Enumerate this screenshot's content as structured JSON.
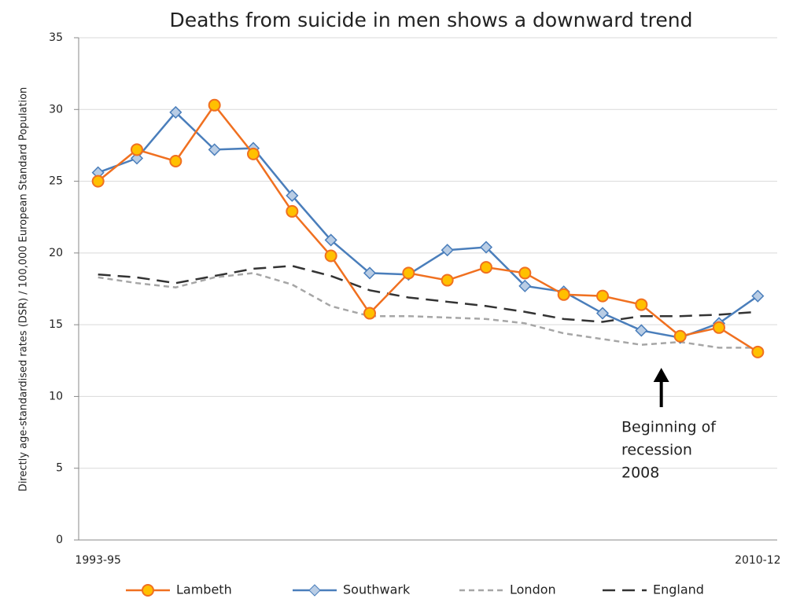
{
  "chart_data": {
    "type": "line",
    "title": "Deaths from suicide in men shows a downward trend",
    "y_label": "Directly age-standardised rates (DSR) / 100,000 European Standard Population",
    "categories": [
      "1993-95",
      null,
      null,
      null,
      null,
      null,
      null,
      null,
      null,
      null,
      null,
      null,
      null,
      null,
      null,
      null,
      null,
      "2010-12"
    ],
    "series": [
      {
        "name": "Lambeth",
        "color": "#f07020",
        "marker": "circle",
        "marker_color": "#ffc000",
        "dash": "solid",
        "values": [
          25.0,
          27.2,
          26.4,
          30.3,
          26.9,
          22.9,
          19.8,
          15.8,
          18.6,
          18.1,
          19.0,
          18.6,
          17.1,
          17.0,
          16.4,
          14.2,
          14.8,
          13.1
        ]
      },
      {
        "name": "Southwark",
        "color": "#4a7ebb",
        "marker": "diamond",
        "marker_color": "#b9cde5",
        "dash": "solid",
        "values": [
          25.6,
          26.6,
          29.8,
          27.2,
          27.3,
          24.0,
          20.9,
          18.6,
          18.5,
          20.2,
          20.4,
          17.7,
          17.3,
          15.8,
          14.6,
          14.1,
          15.1,
          17.0
        ]
      },
      {
        "name": "London",
        "color": "#a6a6a6",
        "marker": "none",
        "dash": "short",
        "values": [
          18.3,
          17.9,
          17.6,
          18.3,
          18.6,
          17.8,
          16.3,
          15.6,
          15.6,
          15.5,
          15.4,
          15.1,
          14.4,
          14.0,
          13.6,
          13.8,
          13.4,
          13.4
        ]
      },
      {
        "name": "England",
        "color": "#333333",
        "marker": "none",
        "dash": "long",
        "values": [
          18.5,
          18.3,
          17.9,
          18.4,
          18.9,
          19.1,
          18.4,
          17.4,
          16.9,
          16.6,
          16.3,
          15.9,
          15.4,
          15.2,
          15.6,
          15.6,
          15.7,
          15.9
        ]
      }
    ],
    "ylim": [
      0,
      35
    ],
    "yticks": [
      0,
      5,
      10,
      15,
      20,
      25,
      30,
      35
    ],
    "grid": true,
    "legend": "bottom",
    "annotation": {
      "lines": [
        "Beginning of",
        "recession",
        "2008"
      ],
      "category_index": 15
    }
  }
}
